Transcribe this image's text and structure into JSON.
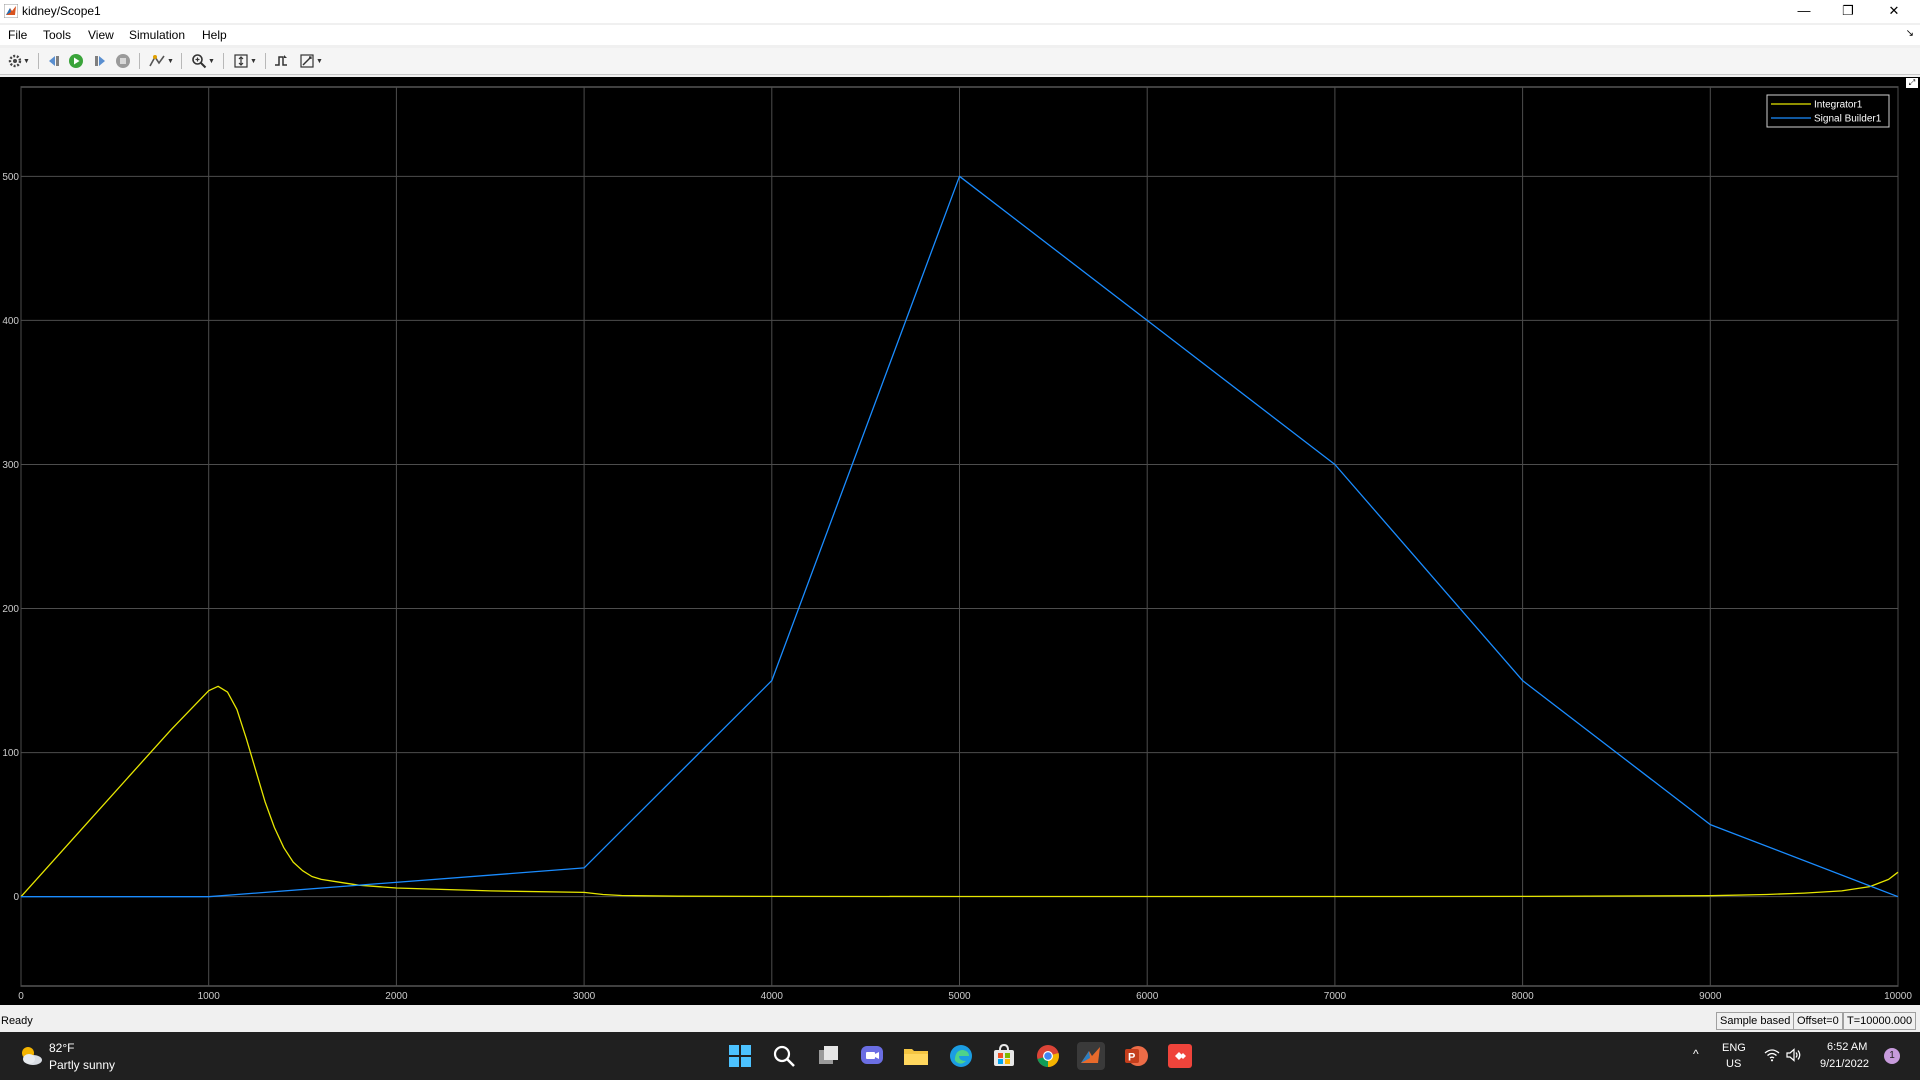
{
  "window": {
    "title": "kidney/Scope1",
    "minimize_glyph": "—",
    "restore_glyph": "❐",
    "close_glyph": "✕"
  },
  "menu": {
    "items": [
      "File",
      "Tools",
      "View",
      "Simulation",
      "Help"
    ],
    "undock_glyph": "↘"
  },
  "toolbar": {
    "icons": [
      "settings-icon",
      "step-back-icon",
      "run-icon",
      "step-forward-icon",
      "stop-icon",
      "highlight-icon",
      "zoom-icon",
      "scale-axes-icon",
      "triggers-icon",
      "cursor-measurements-icon"
    ]
  },
  "plot": {
    "background": "#000000",
    "grid_color": "#4d4d4d",
    "tick_color": "#cccccc"
  },
  "chart_data": {
    "type": "line",
    "title": "",
    "xlabel": "",
    "ylabel": "",
    "xlim": [
      0,
      10000
    ],
    "ylim": [
      -62,
      562
    ],
    "xticks": [
      0,
      1000,
      2000,
      3000,
      4000,
      5000,
      6000,
      7000,
      8000,
      9000,
      10000
    ],
    "yticks": [
      0,
      100,
      200,
      300,
      400,
      500
    ],
    "grid": true,
    "legend_position": "top-right",
    "series": [
      {
        "name": "Integrator1",
        "color": "#e6e600",
        "x": [
          0,
          200,
          400,
          600,
          800,
          1000,
          1050,
          1100,
          1150,
          1200,
          1250,
          1300,
          1350,
          1400,
          1450,
          1500,
          1550,
          1600,
          1700,
          1800,
          2000,
          2500,
          3000,
          3100,
          3200,
          3500,
          4000,
          5000,
          6000,
          7000,
          8000,
          9000,
          9300,
          9500,
          9700,
          9850,
          9950,
          10000
        ],
        "y": [
          0,
          29,
          58,
          87,
          116,
          143,
          146,
          142,
          130,
          110,
          88,
          66,
          48,
          34,
          24,
          18,
          14,
          12,
          10,
          8,
          6,
          4,
          3,
          1.5,
          0.8,
          0.3,
          0.2,
          0.1,
          0.1,
          0.1,
          0.2,
          0.7,
          1.5,
          2.5,
          4,
          7,
          12,
          17
        ]
      },
      {
        "name": "Signal Builder1",
        "color": "#1a8cff",
        "x": [
          0,
          1000,
          3000,
          4000,
          5000,
          6000,
          7000,
          8000,
          9000,
          10000
        ],
        "y": [
          0,
          0,
          20,
          150,
          500,
          400,
          300,
          150,
          50,
          0
        ]
      }
    ]
  },
  "status": {
    "left": "Ready",
    "mode": "Sample based",
    "offset": "Offset=0",
    "time": "T=10000.000"
  },
  "taskbar": {
    "temperature": "82°F",
    "weather": "Partly sunny",
    "apps": [
      "start-icon",
      "search-icon",
      "task-view-icon",
      "teams-chat-icon",
      "file-explorer-icon",
      "edge-icon",
      "store-icon",
      "chrome-icon",
      "matlab-icon",
      "powerpoint-icon",
      "anydesk-icon"
    ],
    "chevron_glyph": "^",
    "lang1": "ENG",
    "lang2": "US",
    "time": "6:52 AM",
    "date": "9/21/2022",
    "notification_count": "1"
  }
}
